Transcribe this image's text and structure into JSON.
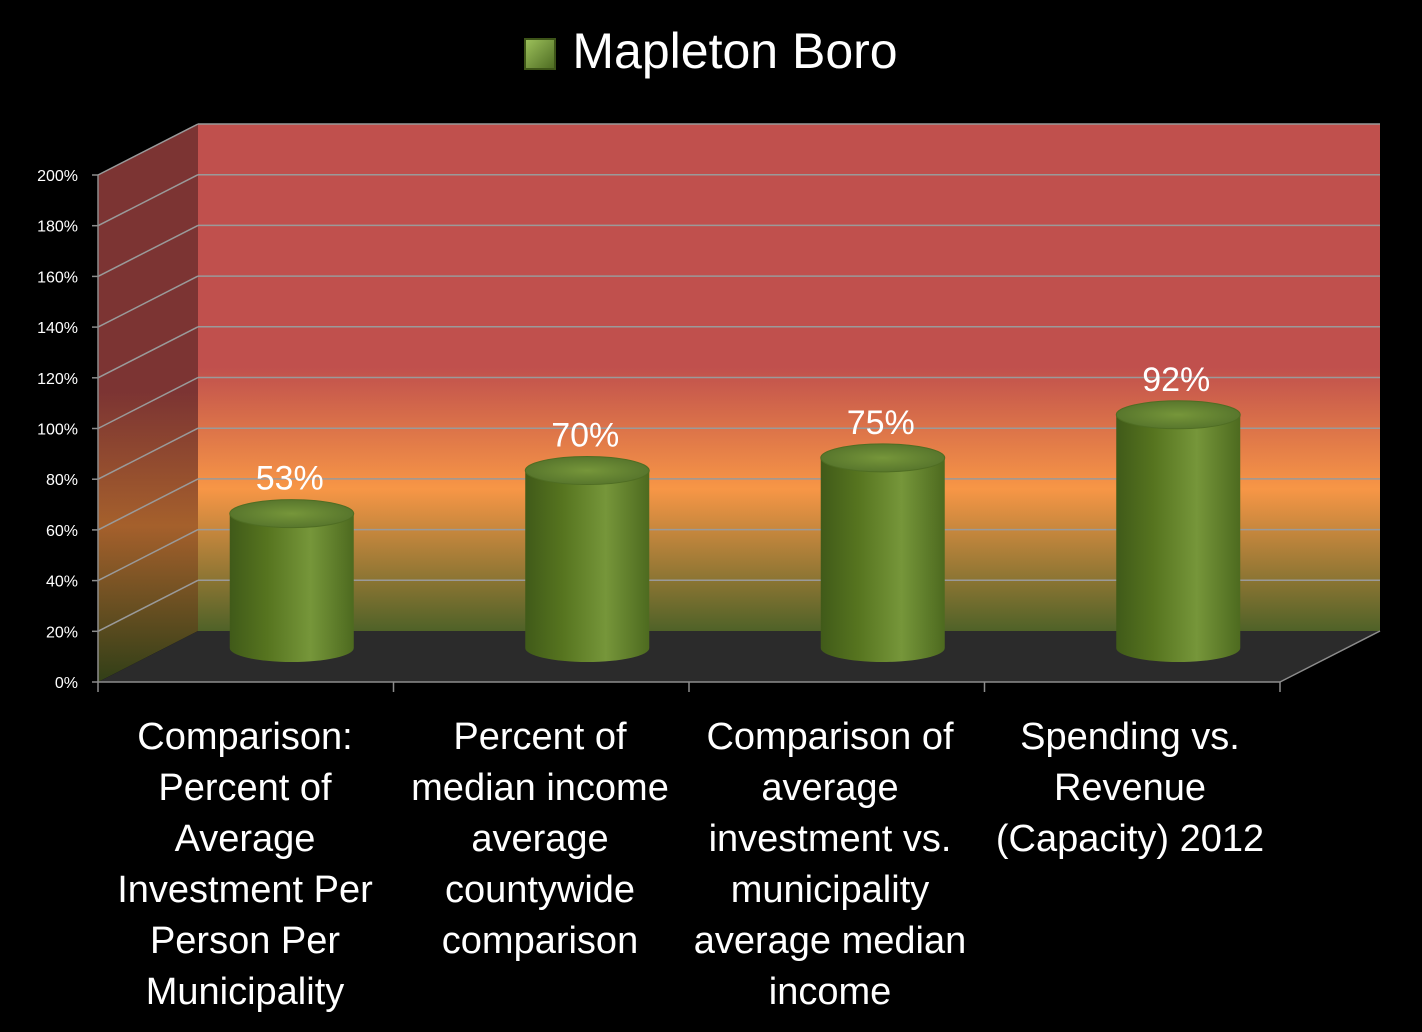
{
  "chart_data": {
    "type": "bar",
    "style": "3d-cylinder",
    "categories": [
      "Comparison: Percent of Average Investment Per Person Per Municipality",
      "Percent of median income average countywide comparison",
      "Comparison of average investment vs. municipality average median income",
      "Spending vs. Revenue (Capacity) 2012"
    ],
    "series": [
      {
        "name": "Mapleton Boro",
        "values": [
          53,
          70,
          75,
          92
        ],
        "data_labels": [
          "53%",
          "70%",
          "75%",
          "92%"
        ]
      }
    ],
    "yticks": [
      "0%",
      "20%",
      "40%",
      "60%",
      "80%",
      "100%",
      "120%",
      "140%",
      "160%",
      "180%",
      "200%"
    ],
    "ylim": [
      0,
      200
    ],
    "grid": true,
    "legend": "top-center",
    "colors": {
      "background": "#000000",
      "bar": "#6a8a30",
      "wall_top": "#c0504d",
      "wall_middle": "#f79646",
      "wall_bottom": "#4f6228",
      "floor": "#2b2b2b",
      "text": "#ffffff"
    }
  }
}
